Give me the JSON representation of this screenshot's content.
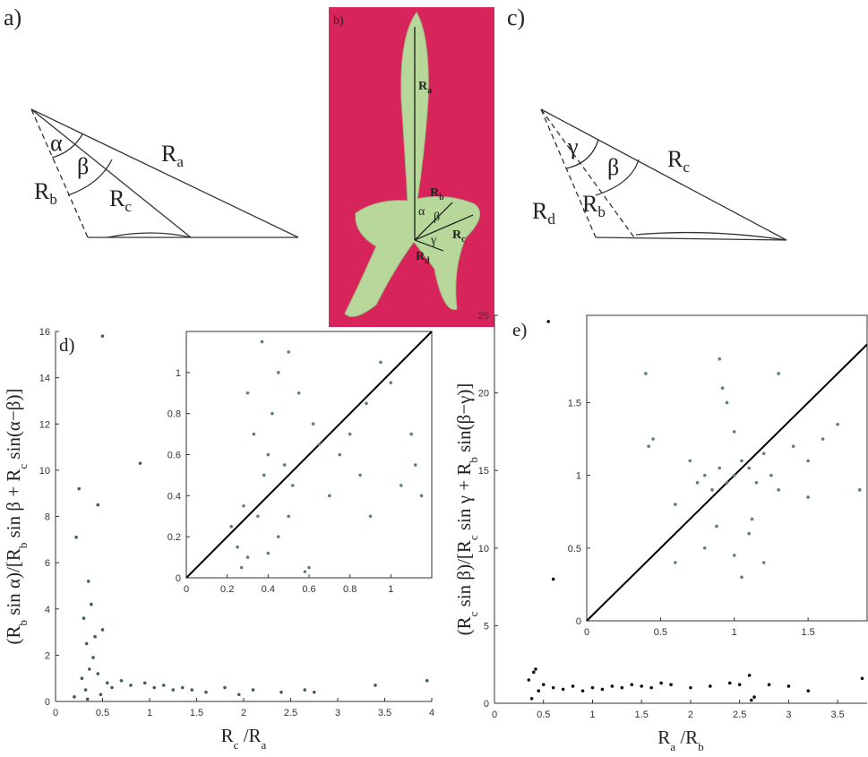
{
  "panels": {
    "a": {
      "label": "a)",
      "alpha": "α",
      "beta": "β",
      "Ra": {
        "base": "R",
        "sub": "a"
      },
      "Rb": {
        "base": "R",
        "sub": "b"
      },
      "Rc": {
        "base": "R",
        "sub": "c"
      }
    },
    "b": {
      "label": "b)",
      "alpha": "α",
      "beta": "β",
      "gamma": "γ",
      "Ra": {
        "base": "R",
        "sub": "a"
      },
      "Rb": {
        "base": "R",
        "sub": "b"
      },
      "Rc": {
        "base": "R",
        "sub": "c"
      },
      "Rd": {
        "base": "R",
        "sub": "d"
      }
    },
    "c": {
      "label": "c)",
      "gamma": "γ",
      "beta": "β",
      "Rc": {
        "base": "R",
        "sub": "c"
      },
      "Rd": {
        "base": "R",
        "sub": "d"
      },
      "Rb": {
        "base": "R",
        "sub": "b"
      }
    }
  },
  "chart_data": [
    {
      "type": "scatter",
      "title": "d)",
      "xlabel": [
        {
          "text": "R"
        },
        {
          "sub": "c"
        },
        {
          "text": " /R"
        },
        {
          "sub": "a"
        }
      ],
      "ylabel": [
        {
          "text": "(R"
        },
        {
          "sub": "b"
        },
        {
          "text": " sin α)/[R"
        },
        {
          "sub": "b"
        },
        {
          "text": " sin β + R"
        },
        {
          "sub": "c"
        },
        {
          "text": " sin(α−β)]"
        }
      ],
      "x": [
        0.25,
        0.22,
        0.45,
        0.9,
        0.35,
        0.5,
        0.3,
        0.38,
        0.42,
        0.33,
        0.4,
        0.36,
        0.28,
        0.45,
        0.5,
        0.55,
        0.32,
        0.6,
        0.7,
        0.8,
        0.95,
        1.05,
        1.15,
        1.25,
        1.35,
        1.45,
        1.6,
        1.8,
        1.95,
        2.1,
        2.4,
        2.65,
        2.75,
        3.4,
        3.95,
        0.2,
        0.48,
        0.34
      ],
      "values": [
        9.2,
        7.1,
        8.5,
        10.3,
        5.2,
        15.8,
        3.6,
        4.2,
        2.8,
        2.5,
        1.9,
        1.4,
        1.0,
        1.2,
        3.1,
        0.8,
        0.5,
        0.6,
        0.9,
        0.7,
        0.8,
        0.6,
        0.7,
        0.5,
        0.6,
        0.5,
        0.4,
        0.6,
        0.3,
        0.5,
        0.4,
        0.5,
        0.4,
        0.7,
        0.9,
        0.2,
        0.3,
        0.1
      ],
      "color": "#3f5f57",
      "xlim": [
        0,
        4
      ],
      "ylim": [
        0,
        16
      ],
      "xticks": [
        0,
        0.5,
        1,
        1.5,
        2,
        2.5,
        3,
        3.5,
        4
      ],
      "yticks": [
        0,
        2,
        4,
        6,
        8,
        10,
        12,
        14,
        16
      ]
    },
    {
      "type": "scatter",
      "x": [
        0.22,
        0.25,
        0.3,
        0.28,
        0.35,
        0.38,
        0.4,
        0.42,
        0.45,
        0.5,
        0.55,
        0.6,
        0.33,
        0.37,
        0.48,
        0.52,
        0.65,
        0.7,
        0.75,
        0.8,
        0.85,
        0.9,
        0.95,
        1.0,
        1.05,
        1.1,
        1.15,
        0.3,
        0.4,
        0.45,
        0.58,
        0.62,
        0.88,
        1.12,
        0.27,
        0.5
      ],
      "values": [
        0.25,
        0.15,
        0.1,
        0.35,
        0.3,
        0.5,
        0.6,
        0.8,
        1.0,
        1.1,
        0.9,
        0.05,
        0.7,
        1.15,
        0.55,
        0.45,
        0.65,
        0.4,
        0.6,
        0.7,
        0.5,
        0.3,
        1.05,
        0.95,
        0.45,
        0.7,
        0.4,
        0.9,
        0.12,
        0.2,
        0.03,
        0.75,
        0.85,
        0.55,
        0.05,
        0.3
      ],
      "color": "#5f7f77",
      "xlim": [
        0,
        1.2
      ],
      "ylim": [
        0,
        1.2
      ],
      "xticks": [
        0,
        0.2,
        0.4,
        0.6,
        0.8,
        1
      ],
      "yticks": [
        0,
        0.2,
        0.4,
        0.6,
        0.8,
        1
      ]
    },
    {
      "type": "scatter",
      "title": "e)",
      "xlabel": [
        {
          "text": "R"
        },
        {
          "sub": "a"
        },
        {
          "text": " /R"
        },
        {
          "sub": "b"
        }
      ],
      "ylabel": [
        {
          "text": "(R"
        },
        {
          "sub": "c"
        },
        {
          "text": " sin β)/[R"
        },
        {
          "sub": "c"
        },
        {
          "text": " sin γ + R"
        },
        {
          "sub": "b"
        },
        {
          "text": " sin(β−γ)]"
        }
      ],
      "x": [
        0.55,
        0.6,
        0.35,
        0.4,
        0.45,
        0.5,
        0.6,
        0.7,
        0.8,
        0.9,
        1.0,
        1.1,
        1.2,
        1.3,
        1.4,
        1.5,
        1.6,
        1.7,
        1.8,
        2.0,
        2.2,
        2.4,
        2.5,
        2.6,
        2.65,
        2.8,
        3.0,
        3.2,
        3.75,
        0.38,
        0.42,
        2.62
      ],
      "values": [
        24.6,
        8.0,
        1.5,
        2.0,
        0.8,
        1.2,
        1.0,
        0.9,
        1.1,
        0.8,
        1.0,
        0.9,
        1.1,
        1.0,
        1.2,
        1.1,
        1.0,
        1.3,
        1.2,
        1.0,
        1.1,
        1.3,
        1.2,
        1.8,
        0.4,
        1.2,
        1.1,
        0.8,
        1.6,
        0.3,
        2.2,
        0.2
      ],
      "color": "#111111",
      "xlim": [
        0,
        3.8
      ],
      "ylim": [
        0,
        25
      ],
      "xticks": [
        0,
        0.5,
        1,
        1.5,
        2,
        2.5,
        3,
        3.5
      ],
      "yticks": [
        0,
        5,
        10,
        15,
        20,
        25
      ]
    },
    {
      "type": "scatter",
      "x": [
        0.4,
        0.45,
        0.42,
        0.6,
        0.7,
        0.75,
        0.8,
        0.85,
        0.9,
        0.95,
        1.0,
        1.05,
        1.1,
        1.15,
        1.2,
        1.25,
        1.3,
        1.4,
        1.5,
        1.6,
        1.7,
        1.85,
        0.9,
        0.95,
        1.0,
        1.05,
        0.8,
        0.88,
        1.12,
        1.2,
        0.6,
        1.3,
        1.0,
        0.92,
        1.1,
        1.5
      ],
      "values": [
        1.7,
        1.25,
        1.2,
        0.8,
        1.1,
        0.95,
        1.0,
        0.9,
        1.05,
        0.95,
        1.0,
        1.1,
        1.05,
        0.95,
        1.15,
        1.0,
        0.9,
        1.2,
        1.1,
        1.25,
        1.35,
        0.9,
        1.8,
        1.5,
        0.45,
        0.3,
        0.5,
        0.65,
        0.7,
        0.4,
        0.4,
        1.7,
        1.3,
        1.6,
        0.6,
        0.85
      ],
      "color": "#5f7f77",
      "xlim": [
        0,
        1.9
      ],
      "ylim": [
        0,
        2.1
      ],
      "xticks": [
        0,
        0.5,
        1,
        1.5
      ],
      "yticks": [
        0,
        0.5,
        1,
        1.5
      ]
    }
  ]
}
